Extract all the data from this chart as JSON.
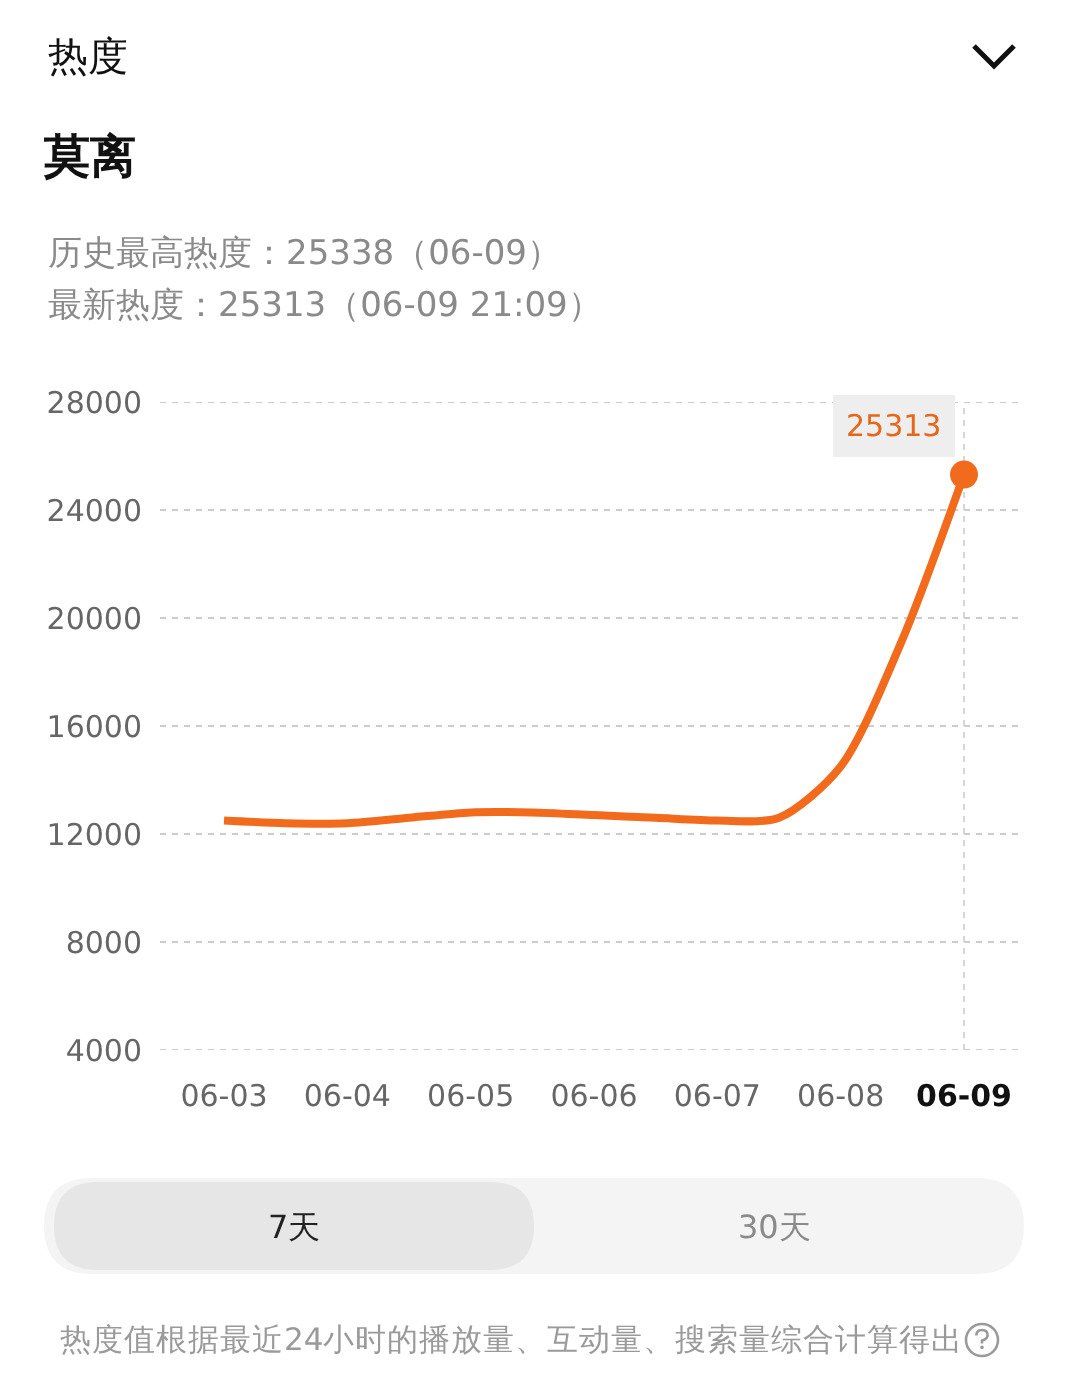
{
  "chart_data": {
    "type": "line",
    "title": "莫离",
    "subtitle": "历史最高热度：25338（06-09）",
    "annotations": [
      "热度",
      "最新热度：25313（06-09 21:09）",
      "7天",
      "30天",
      "热度值根据最近24小时的播放量、互动量、搜索量综合计算得出"
    ],
    "categories": [
      "06-03",
      null,
      "06-04",
      null,
      "06-05",
      null,
      "06-06",
      null,
      "06-07",
      null,
      "06-08",
      null,
      "06-09"
    ],
    "series": [
      {
        "color": "#f26b1d",
        "marker": "none",
        "values": [
          12500,
          12400,
          12400,
          12600,
          12800,
          12800,
          12700,
          12600,
          12500,
          12600,
          14500,
          19200,
          25313
        ],
        "value_labels": [
          null,
          null,
          null,
          null,
          null,
          null,
          null,
          null,
          null,
          null,
          null,
          null,
          "25313"
        ]
      },
      {
        "type": "scatter",
        "color": "#f26b1d",
        "marker": "circle",
        "x": [
          "06-09"
        ],
        "values": [
          25313
        ]
      }
    ],
    "ylim": [
      4000,
      28000
    ],
    "yticks": [
      4000,
      8000,
      12000,
      16000,
      20000,
      24000,
      28000
    ],
    "grid": "y",
    "legend": false,
    "line_style": "solid",
    "ref_lines": [
      {
        "axis": "x",
        "value": "06-09",
        "color": "#d6d6d6",
        "line_style": "dotted"
      }
    ]
  }
}
